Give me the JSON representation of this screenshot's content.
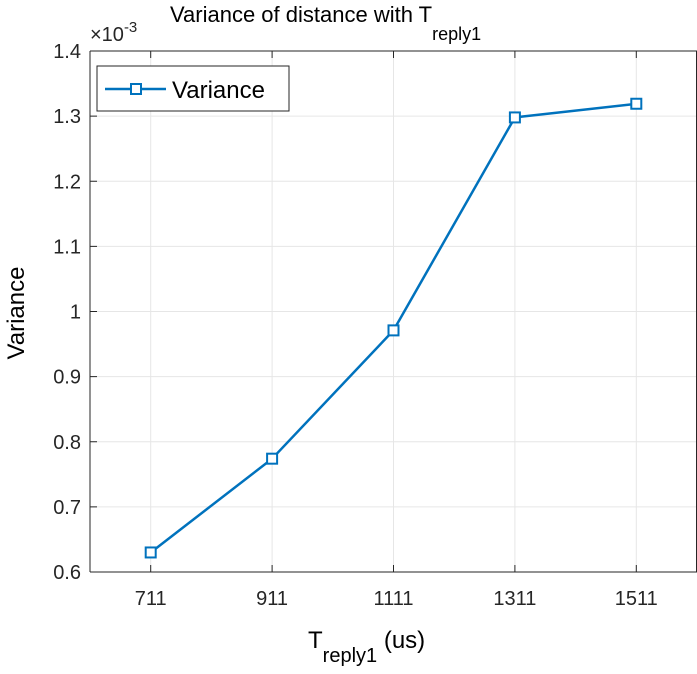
{
  "chart_data": {
    "type": "line",
    "title": {
      "main": "Variance of distance with T",
      "sub": "reply1"
    },
    "xlabel": {
      "main": "T",
      "sub": "reply1",
      "suffix": " (us)"
    },
    "ylabel": "Variance",
    "y_exponent": {
      "base": "×10",
      "power": "-3"
    },
    "categories": [
      "711",
      "911",
      "1111",
      "1311",
      "1511"
    ],
    "series": [
      {
        "name": "Variance",
        "values": [
          0.63,
          0.774,
          0.971,
          1.298,
          1.319
        ]
      }
    ],
    "xlim": [
      611,
      1611
    ],
    "ylim": [
      0.6,
      1.4
    ],
    "yticks": [
      "0.6",
      "0.7",
      "0.8",
      "0.9",
      "1",
      "1.1",
      "1.2",
      "1.3",
      "1.4"
    ],
    "grid": true,
    "legend_position": "top-left",
    "colors": {
      "line": "#0072BD",
      "grid": "#e6e6e6",
      "axis": "#262626"
    },
    "marker": "square"
  }
}
